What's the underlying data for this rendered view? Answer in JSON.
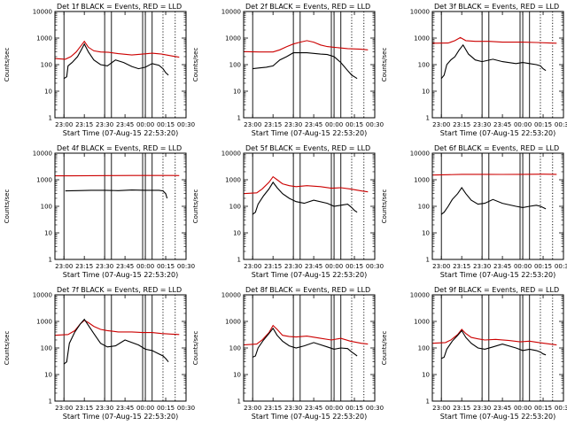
{
  "chart_data": [
    {
      "type": "line",
      "title": "Det 1f BLACK = Events, RED = LLD",
      "xlabel": "Start Time (07-Aug-15 22:53:20)",
      "ylabel": "Counts/sec",
      "y_scale": "log",
      "ylim": [
        1,
        10000
      ],
      "y_ticks": [
        "1",
        "10",
        "100",
        "1000",
        "10000"
      ],
      "x_range": [
        "22:53:20",
        "00:30"
      ],
      "x_ticks": [
        "23:00",
        "23:15",
        "23:30",
        "23:45",
        "00:00",
        "00:15",
        "00:30"
      ],
      "solid_markers": [
        "23:00",
        "23:30",
        "23:35",
        "23:58",
        "00:00",
        "00:05"
      ],
      "dotted_markers": [
        "00:13",
        "00:22"
      ],
      "series": [
        {
          "color": "#cc0000",
          "x": [
            "22:53",
            "23:01",
            "23:05",
            "23:09",
            "23:13",
            "23:15",
            "23:18",
            "23:22",
            "23:27",
            "23:33",
            "23:40",
            "23:50",
            "23:58",
            "00:05",
            "00:12",
            "00:20",
            "00:25"
          ],
          "values": [
            170,
            160,
            200,
            300,
            550,
            750,
            450,
            330,
            300,
            290,
            260,
            230,
            250,
            270,
            250,
            210,
            190
          ]
        },
        {
          "color": "#000000",
          "x": [
            "23:00",
            "23:02",
            "23:03",
            "23:06",
            "23:10",
            "23:13",
            "23:15",
            "23:18",
            "23:22",
            "23:27",
            "23:32",
            "23:38",
            "23:44",
            "23:50",
            "23:55",
            "00:00",
            "00:05",
            "00:10",
            "00:13",
            "00:15",
            "00:17"
          ],
          "values": [
            30,
            35,
            90,
            120,
            200,
            380,
            600,
            300,
            150,
            100,
            90,
            150,
            120,
            85,
            70,
            80,
            110,
            95,
            70,
            50,
            40
          ]
        }
      ]
    },
    {
      "type": "line",
      "title": "Det 2f BLACK = Events, RED = LLD",
      "xlabel": "Start Time (07-Aug-15 22:53:20)",
      "ylabel": "Counts/sec",
      "y_scale": "log",
      "ylim": [
        1,
        10000
      ],
      "y_ticks": [
        "1",
        "10",
        "100",
        "1000",
        "10000"
      ],
      "x_range": [
        "22:53:20",
        "00:30"
      ],
      "x_ticks": [
        "23:00",
        "23:15",
        "23:30",
        "23:45",
        "00:00",
        "00:15",
        "00:30"
      ],
      "solid_markers": [
        "23:00",
        "23:30",
        "23:35",
        "23:58",
        "00:00",
        "00:05"
      ],
      "dotted_markers": [
        "00:13",
        "00:22"
      ],
      "series": [
        {
          "color": "#cc0000",
          "x": [
            "22:53",
            "23:05",
            "23:15",
            "23:20",
            "23:25",
            "23:30",
            "23:35",
            "23:40",
            "23:45",
            "23:50",
            "23:55",
            "00:00",
            "00:10",
            "00:20",
            "00:25"
          ],
          "values": [
            310,
            300,
            300,
            360,
            470,
            600,
            700,
            800,
            700,
            550,
            480,
            450,
            400,
            380,
            360
          ]
        },
        {
          "color": "#000000",
          "x": [
            "23:00",
            "23:05",
            "23:10",
            "23:15",
            "23:20",
            "23:25",
            "23:30",
            "23:40",
            "23:50",
            "23:55",
            "00:00",
            "00:05",
            "00:10",
            "00:13",
            "00:15",
            "00:17"
          ],
          "values": [
            70,
            75,
            80,
            90,
            150,
            200,
            280,
            280,
            250,
            240,
            200,
            120,
            60,
            40,
            35,
            30
          ]
        }
      ]
    },
    {
      "type": "line",
      "title": "Det 3f BLACK = Events, RED = LLD",
      "xlabel": "Start Time (07-Aug-15 22:53:20)",
      "ylabel": "Counts/sec",
      "y_scale": "log",
      "ylim": [
        1,
        10000
      ],
      "y_ticks": [
        "1",
        "10",
        "100",
        "1000",
        "10000"
      ],
      "x_range": [
        "22:53:20",
        "00:30"
      ],
      "x_ticks": [
        "23:00",
        "23:15",
        "23:30",
        "23:45",
        "00:00",
        "00:15",
        "00:30"
      ],
      "solid_markers": [
        "23:00",
        "23:30",
        "23:35",
        "23:58",
        "00:00",
        "00:05"
      ],
      "dotted_markers": [
        "00:13",
        "00:22"
      ],
      "series": [
        {
          "color": "#cc0000",
          "x": [
            "22:53",
            "23:05",
            "23:10",
            "23:14",
            "23:18",
            "23:25",
            "23:35",
            "23:45",
            "00:00",
            "00:10",
            "00:20",
            "00:25"
          ],
          "values": [
            640,
            650,
            800,
            1050,
            800,
            750,
            750,
            700,
            700,
            680,
            650,
            640
          ]
        },
        {
          "color": "#000000",
          "x": [
            "23:00",
            "23:02",
            "23:04",
            "23:07",
            "23:10",
            "23:13",
            "23:16",
            "23:20",
            "23:25",
            "23:30",
            "23:38",
            "23:45",
            "23:55",
            "00:00",
            "00:05",
            "00:10",
            "00:13",
            "00:15",
            "00:17"
          ],
          "values": [
            30,
            40,
            100,
            150,
            200,
            350,
            550,
            250,
            150,
            130,
            160,
            130,
            110,
            120,
            110,
            100,
            90,
            70,
            60
          ]
        }
      ]
    },
    {
      "type": "line",
      "title": "Det 4f BLACK = Events, RED = LLD",
      "xlabel": "Start Time (07-Aug-15 22:53:20)",
      "ylabel": "Counts/sec",
      "y_scale": "log",
      "ylim": [
        1,
        10000
      ],
      "y_ticks": [
        "1",
        "10",
        "100",
        "1000",
        "10000"
      ],
      "x_range": [
        "22:53:20",
        "00:30"
      ],
      "x_ticks": [
        "23:00",
        "23:15",
        "23:30",
        "23:45",
        "00:00",
        "00:15",
        "00:30"
      ],
      "solid_markers": [
        "23:00",
        "23:30",
        "23:35",
        "23:58",
        "00:00",
        "00:05"
      ],
      "dotted_markers": [
        "00:13",
        "00:22"
      ],
      "series": [
        {
          "color": "#cc0000",
          "x": [
            "22:53",
            "23:05",
            "23:20",
            "23:35",
            "23:50",
            "00:05",
            "00:20",
            "00:25"
          ],
          "values": [
            1400,
            1400,
            1420,
            1430,
            1450,
            1450,
            1440,
            1430
          ]
        },
        {
          "color": "#000000",
          "x": [
            "23:01",
            "23:10",
            "23:20",
            "23:30",
            "23:40",
            "23:50",
            "00:00",
            "00:10",
            "00:13",
            "00:15",
            "00:16"
          ],
          "values": [
            380,
            390,
            400,
            400,
            390,
            410,
            400,
            400,
            380,
            300,
            200
          ]
        }
      ]
    },
    {
      "type": "line",
      "title": "Det 5f BLACK = Events, RED = LLD",
      "xlabel": "Start Time (07-Aug-15 22:53:20)",
      "ylabel": "Counts/sec",
      "y_scale": "log",
      "ylim": [
        1,
        10000
      ],
      "y_ticks": [
        "1",
        "10",
        "100",
        "1000",
        "10000"
      ],
      "x_range": [
        "22:53:20",
        "00:30"
      ],
      "x_ticks": [
        "23:00",
        "23:15",
        "23:30",
        "23:45",
        "00:00",
        "00:15",
        "00:30"
      ],
      "solid_markers": [
        "23:00",
        "23:30",
        "23:35",
        "23:58",
        "00:00",
        "00:05"
      ],
      "dotted_markers": [
        "00:13",
        "00:22"
      ],
      "series": [
        {
          "color": "#cc0000",
          "x": [
            "22:53",
            "23:03",
            "23:07",
            "23:12",
            "23:15",
            "23:18",
            "23:22",
            "23:27",
            "23:32",
            "23:40",
            "23:50",
            "23:58",
            "00:05",
            "00:12",
            "00:20",
            "00:25"
          ],
          "values": [
            300,
            320,
            450,
            800,
            1300,
            1000,
            700,
            600,
            550,
            600,
            550,
            480,
            500,
            450,
            380,
            350
          ]
        },
        {
          "color": "#000000",
          "x": [
            "23:00",
            "23:02",
            "23:04",
            "23:08",
            "23:12",
            "23:15",
            "23:18",
            "23:22",
            "23:27",
            "23:32",
            "23:38",
            "23:45",
            "23:55",
            "00:00",
            "00:05",
            "00:10",
            "00:13",
            "00:15",
            "00:17"
          ],
          "values": [
            50,
            60,
            120,
            250,
            450,
            800,
            500,
            300,
            200,
            150,
            130,
            170,
            130,
            100,
            110,
            120,
            90,
            70,
            60
          ]
        }
      ]
    },
    {
      "type": "line",
      "title": "Det 6f BLACK = Events, RED = LLD",
      "xlabel": "Start Time (07-Aug-15 22:53:20)",
      "ylabel": "Counts/sec",
      "y_scale": "log",
      "ylim": [
        1,
        10000
      ],
      "y_ticks": [
        "1",
        "10",
        "100",
        "1000",
        "10000"
      ],
      "x_range": [
        "22:53:20",
        "00:30"
      ],
      "x_ticks": [
        "23:00",
        "23:15",
        "23:30",
        "23:45",
        "00:00",
        "00:15",
        "00:30"
      ],
      "solid_markers": [
        "23:00",
        "23:30",
        "23:35",
        "23:58",
        "00:00",
        "00:05"
      ],
      "dotted_markers": [
        "00:13",
        "00:22"
      ],
      "series": [
        {
          "color": "#cc0000",
          "x": [
            "22:53",
            "23:05",
            "23:15",
            "23:30",
            "23:45",
            "00:00",
            "00:15",
            "00:25"
          ],
          "values": [
            1500,
            1550,
            1600,
            1600,
            1580,
            1600,
            1620,
            1600
          ]
        },
        {
          "color": "#000000",
          "x": [
            "23:00",
            "23:02",
            "23:05",
            "23:08",
            "23:12",
            "23:15",
            "23:18",
            "23:22",
            "23:27",
            "23:32",
            "23:38",
            "23:45",
            "23:55",
            "00:00",
            "00:05",
            "00:10",
            "00:13",
            "00:15",
            "00:17"
          ],
          "values": [
            50,
            60,
            100,
            180,
            300,
            500,
            300,
            170,
            120,
            130,
            180,
            130,
            100,
            90,
            100,
            110,
            100,
            90,
            80
          ]
        }
      ]
    },
    {
      "type": "line",
      "title": "Det 7f BLACK = Events, RED = LLD",
      "xlabel": "Start Time (07-Aug-15 22:53:20)",
      "ylabel": "Counts/sec",
      "y_scale": "log",
      "ylim": [
        1,
        10000
      ],
      "y_ticks": [
        "1",
        "10",
        "100",
        "1000",
        "10000"
      ],
      "x_range": [
        "22:53:20",
        "00:30"
      ],
      "x_ticks": [
        "23:00",
        "23:15",
        "23:30",
        "23:45",
        "00:00",
        "00:15",
        "00:30"
      ],
      "solid_markers": [
        "23:00",
        "23:30",
        "23:35",
        "23:58",
        "00:00",
        "00:05"
      ],
      "dotted_markers": [
        "00:13",
        "00:22"
      ],
      "series": [
        {
          "color": "#cc0000",
          "x": [
            "22:53",
            "23:03",
            "23:08",
            "23:12",
            "23:15",
            "23:18",
            "23:22",
            "23:27",
            "23:32",
            "23:40",
            "23:50",
            "23:58",
            "00:05",
            "00:12",
            "00:20",
            "00:25"
          ],
          "values": [
            300,
            320,
            450,
            800,
            1100,
            900,
            650,
            500,
            450,
            400,
            400,
            380,
            380,
            350,
            330,
            320
          ]
        },
        {
          "color": "#000000",
          "x": [
            "23:00",
            "23:02",
            "23:04",
            "23:08",
            "23:12",
            "23:15",
            "23:18",
            "23:22",
            "23:27",
            "23:32",
            "23:38",
            "23:45",
            "23:55",
            "00:00",
            "00:05",
            "00:10",
            "00:13",
            "00:15",
            "00:17"
          ],
          "values": [
            25,
            30,
            150,
            400,
            800,
            1200,
            700,
            350,
            150,
            110,
            120,
            200,
            130,
            90,
            80,
            60,
            50,
            40,
            30
          ]
        }
      ]
    },
    {
      "type": "line",
      "title": "Det 8f BLACK = Events, RED = LLD",
      "xlabel": "Start Time (07-Aug-15 22:53:20)",
      "ylabel": "Counts/sec",
      "y_scale": "log",
      "ylim": [
        1,
        10000
      ],
      "y_ticks": [
        "1",
        "10",
        "100",
        "1000",
        "10000"
      ],
      "x_range": [
        "22:53:20",
        "00:30"
      ],
      "x_ticks": [
        "23:00",
        "23:15",
        "23:30",
        "23:45",
        "00:00",
        "00:15",
        "00:30"
      ],
      "solid_markers": [
        "23:00",
        "23:30",
        "23:35",
        "23:58",
        "00:00",
        "00:05"
      ],
      "dotted_markers": [
        "00:13",
        "00:22"
      ],
      "series": [
        {
          "color": "#cc0000",
          "x": [
            "22:53",
            "23:03",
            "23:07",
            "23:12",
            "23:15",
            "23:18",
            "23:22",
            "23:27",
            "23:32",
            "23:40",
            "23:50",
            "23:58",
            "00:05",
            "00:12",
            "00:20",
            "00:25"
          ],
          "values": [
            130,
            140,
            200,
            380,
            700,
            500,
            300,
            270,
            260,
            280,
            230,
            200,
            230,
            180,
            150,
            140
          ]
        },
        {
          "color": "#000000",
          "x": [
            "23:00",
            "23:02",
            "23:04",
            "23:08",
            "23:12",
            "23:15",
            "23:18",
            "23:22",
            "23:27",
            "23:32",
            "23:38",
            "23:45",
            "23:55",
            "00:00",
            "00:05",
            "00:10",
            "00:13",
            "00:15",
            "00:17"
          ],
          "values": [
            45,
            50,
            100,
            200,
            350,
            550,
            300,
            180,
            120,
            100,
            120,
            160,
            110,
            90,
            100,
            95,
            70,
            60,
            50
          ]
        }
      ]
    },
    {
      "type": "line",
      "title": "Det 9f BLACK = Events, RED = LLD",
      "xlabel": "Start Time (07-Aug-15 22:53:20)",
      "ylabel": "Counts/sec",
      "y_scale": "log",
      "ylim": [
        1,
        10000
      ],
      "y_ticks": [
        "1",
        "10",
        "100",
        "1000",
        "10000"
      ],
      "x_range": [
        "22:53:20",
        "00:30"
      ],
      "x_ticks": [
        "23:00",
        "23:15",
        "23:30",
        "23:45",
        "00:00",
        "00:15",
        "00:30"
      ],
      "solid_markers": [
        "23:00",
        "23:30",
        "23:35",
        "23:58",
        "00:00",
        "00:05"
      ],
      "dotted_markers": [
        "00:13",
        "00:22"
      ],
      "series": [
        {
          "color": "#cc0000",
          "x": [
            "22:53",
            "23:03",
            "23:07",
            "23:12",
            "23:15",
            "23:18",
            "23:22",
            "23:27",
            "23:32",
            "23:40",
            "23:50",
            "23:58",
            "00:05",
            "00:12",
            "00:20",
            "00:25"
          ],
          "values": [
            150,
            160,
            200,
            320,
            500,
            350,
            250,
            220,
            200,
            210,
            190,
            170,
            180,
            160,
            140,
            130
          ]
        },
        {
          "color": "#000000",
          "x": [
            "23:00",
            "23:02",
            "23:04",
            "23:08",
            "23:12",
            "23:15",
            "23:18",
            "23:22",
            "23:27",
            "23:32",
            "23:38",
            "23:45",
            "23:55",
            "00:00",
            "00:05",
            "00:10",
            "00:13",
            "00:15",
            "00:17"
          ],
          "values": [
            40,
            45,
            90,
            180,
            300,
            450,
            250,
            150,
            100,
            90,
            110,
            140,
            100,
            80,
            90,
            80,
            70,
            60,
            55
          ]
        }
      ]
    }
  ]
}
